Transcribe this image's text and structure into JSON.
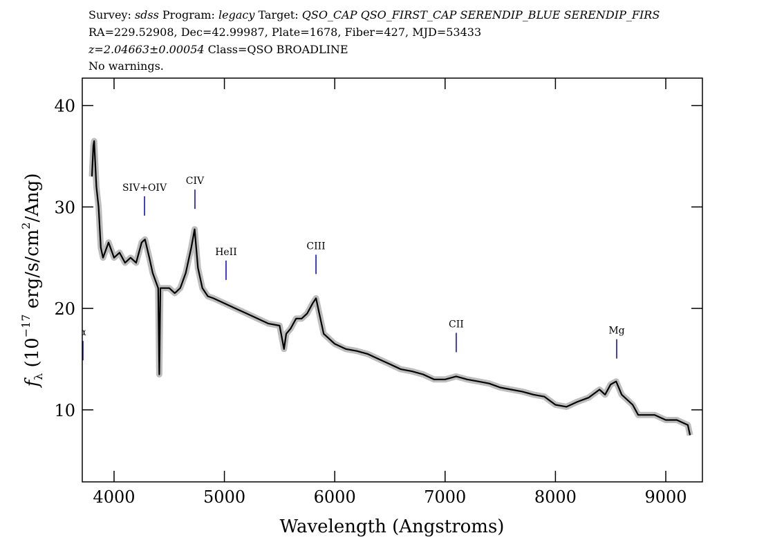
{
  "header": {
    "line1": [
      "Survey: ",
      "sdss",
      " Program: ",
      "legacy",
      " Target: ",
      "QSO_CAP QSO_FIRST_CAP SERENDIP_BLUE SERENDIP_FIRS"
    ],
    "line2": "RA=229.52908, Dec=42.99987, Plate=1678, Fiber=427, MJD=53433",
    "line3": [
      "z=2.04663±0.00054",
      " Class=QSO BROADLINE"
    ],
    "line4": "No warnings."
  },
  "chart_data": {
    "type": "line",
    "color": "#000000",
    "band_color": "#bdbdbd",
    "xlabel": "Wavelength (Angstroms)",
    "ylabel": {
      "symbol": "f",
      "sub": "λ",
      "text1": " (10",
      "sup1": "−17",
      "text2": " erg/s/cm",
      "sup2": "2",
      "text3": "/Ang)"
    },
    "xlim": [
      3712,
      9332
    ],
    "ylim": [
      2.9,
      42.7
    ],
    "xticks": [
      4000,
      5000,
      6000,
      7000,
      8000,
      9000
    ],
    "yticks": [
      10,
      20,
      30,
      40
    ],
    "x": [
      3800,
      3812,
      3820,
      3840,
      3860,
      3880,
      3900,
      3950,
      4000,
      4050,
      4100,
      4150,
      4200,
      4250,
      4280,
      4320,
      4350,
      4400,
      4410,
      4420,
      4500,
      4550,
      4600,
      4650,
      4700,
      4730,
      4760,
      4800,
      4850,
      4900,
      5000,
      5100,
      5200,
      5300,
      5400,
      5500,
      5540,
      5560,
      5600,
      5650,
      5700,
      5750,
      5800,
      5830,
      5860,
      5900,
      6000,
      6100,
      6200,
      6300,
      6400,
      6500,
      6600,
      6700,
      6800,
      6900,
      7000,
      7100,
      7200,
      7300,
      7400,
      7500,
      7600,
      7700,
      7800,
      7900,
      8000,
      8100,
      8200,
      8300,
      8400,
      8450,
      8500,
      8550,
      8600,
      8700,
      8750,
      8800,
      8900,
      9000,
      9100,
      9200,
      9220
    ],
    "values": [
      33,
      36,
      36.5,
      32,
      30,
      26,
      25,
      26.5,
      25,
      25.5,
      24.5,
      25,
      24.5,
      26.5,
      26.8,
      25,
      23.5,
      22,
      13.5,
      22,
      22,
      21.5,
      22,
      23.5,
      26,
      27.8,
      24,
      22,
      21.2,
      21,
      20.5,
      20,
      19.5,
      19,
      18.5,
      18.3,
      16,
      17.5,
      18,
      19,
      19,
      19.5,
      20.5,
      21,
      19.5,
      17.5,
      16.5,
      16,
      15.8,
      15.5,
      15,
      14.5,
      14,
      13.8,
      13.5,
      13,
      13,
      13.3,
      13,
      12.8,
      12.6,
      12.2,
      12,
      11.8,
      11.5,
      11.3,
      10.5,
      10.3,
      10.8,
      11.2,
      12,
      11.5,
      12.5,
      12.8,
      11.5,
      10.5,
      9.5,
      9.5,
      9.5,
      9,
      9,
      8.5,
      7.5
    ],
    "lines": [
      {
        "label": "α",
        "x": 3718
      },
      {
        "label": "SIV+OIV",
        "x": 4276
      },
      {
        "label": "CIV",
        "x": 4733
      },
      {
        "label": "HeII",
        "x": 5015
      },
      {
        "label": "CIII",
        "x": 5830
      },
      {
        "label": "CII",
        "x": 7101
      },
      {
        "label": "Mg",
        "x": 8555
      }
    ],
    "line_color": "#0000c0"
  }
}
